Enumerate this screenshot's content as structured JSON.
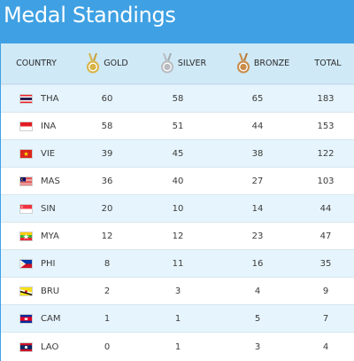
{
  "title": "Medal Standings",
  "header": {
    "country": "COUNTRY",
    "gold": "GOLD",
    "silver": "SILVER",
    "bronze": "BRONZE",
    "total": "TOTAL"
  },
  "medal_colors": {
    "gold": "#d8b347",
    "silver": "#b9bcc0",
    "bronze": "#c98c4a"
  },
  "rows": [
    {
      "code": "THA",
      "gold": "60",
      "silver": "58",
      "bronze": "65",
      "total": "183",
      "flag": "flag-thailand"
    },
    {
      "code": "INA",
      "gold": "58",
      "silver": "51",
      "bronze": "44",
      "total": "153",
      "flag": "flag-indonesia"
    },
    {
      "code": "VIE",
      "gold": "39",
      "silver": "45",
      "bronze": "38",
      "total": "122",
      "flag": "flag-vietnam"
    },
    {
      "code": "MAS",
      "gold": "36",
      "silver": "40",
      "bronze": "27",
      "total": "103",
      "flag": "flag-malaysia"
    },
    {
      "code": "SIN",
      "gold": "20",
      "silver": "10",
      "bronze": "14",
      "total": "44",
      "flag": "flag-singapore"
    },
    {
      "code": "MYA",
      "gold": "12",
      "silver": "12",
      "bronze": "23",
      "total": "47",
      "flag": "flag-myanmar"
    },
    {
      "code": "PHI",
      "gold": "8",
      "silver": "11",
      "bronze": "16",
      "total": "35",
      "flag": "flag-philippines"
    },
    {
      "code": "BRU",
      "gold": "2",
      "silver": "3",
      "bronze": "4",
      "total": "9",
      "flag": "flag-brunei"
    },
    {
      "code": "CAM",
      "gold": "1",
      "silver": "1",
      "bronze": "5",
      "total": "7",
      "flag": "flag-cambodia"
    },
    {
      "code": "LAO",
      "gold": "0",
      "silver": "1",
      "bronze": "3",
      "total": "4",
      "flag": "flag-laos"
    }
  ]
}
